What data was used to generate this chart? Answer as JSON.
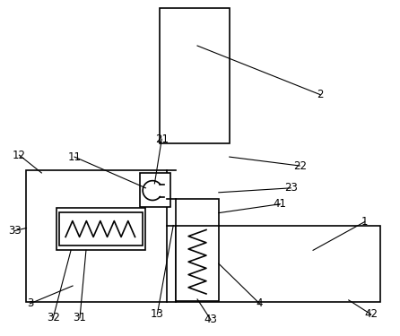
{
  "bg_color": "#ffffff",
  "line_color": "#000000",
  "label_color": "#000000",
  "fig_width": 4.46,
  "fig_height": 3.75,
  "dpi": 100,
  "lw": 1.2,
  "label_fs": 8.5
}
